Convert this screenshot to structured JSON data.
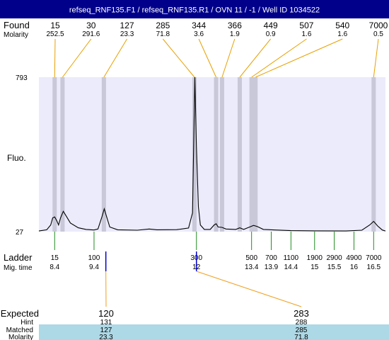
{
  "title": "refseq_RNF135.F1 / refseq_RNF135.R1 / OVN 11 / -1 / Well ID 1034522",
  "colors": {
    "title_bar": "#00008b",
    "plot_bg": "#ebebfb",
    "band": "#c8c8d8",
    "found_line": "#e8a000",
    "ladder_tick": "#228b22",
    "expected_line": "#f0a020",
    "expected_marker": "#0000cc",
    "matched_row_bg": "#add8e6"
  },
  "labels": {
    "found": "Found",
    "molarity": "Molarity",
    "fluo": "Fluo.",
    "ladder": "Ladder",
    "mig_time": "Mig. time",
    "expected": "Expected",
    "hint": "Hint",
    "matched": "Matched",
    "molarity_bottom": "Molarity"
  },
  "chart_data": {
    "type": "line",
    "y_axis": {
      "min": 27,
      "max": 793,
      "ticks": [
        793,
        27
      ]
    },
    "x_axis": {
      "unit": "migration time",
      "range": [
        8.0,
        16.8
      ]
    },
    "found_peaks": [
      {
        "size": "15",
        "molarity": "252.5",
        "time": 8.4
      },
      {
        "size": "30",
        "molarity": "291.6",
        "time": 8.6
      },
      {
        "size": "127",
        "molarity": "23.3",
        "time": 9.65
      },
      {
        "size": "285",
        "molarity": "71.8",
        "time": 11.95
      },
      {
        "size": "344",
        "molarity": "3.6",
        "time": 12.5
      },
      {
        "size": "366",
        "molarity": "1.9",
        "time": 12.65
      },
      {
        "size": "449",
        "molarity": "0.9",
        "time": 13.1
      },
      {
        "size": "507",
        "molarity": "1.6",
        "time": 13.4
      },
      {
        "size": "540",
        "molarity": "1.6",
        "time": 13.5
      },
      {
        "size": "7000",
        "molarity": "0.5",
        "time": 16.5
      }
    ],
    "ladder": [
      {
        "size": "15",
        "time": "8.4",
        "t": 8.4
      },
      {
        "size": "100",
        "time": "9.4",
        "t": 9.4
      },
      {
        "size": "300",
        "time": "12",
        "t": 12.0
      },
      {
        "size": "500",
        "time": "13.4",
        "t": 13.4
      },
      {
        "size": "700",
        "time": "13.9",
        "t": 13.9
      },
      {
        "size": "1100",
        "time": "14.4",
        "t": 14.4
      },
      {
        "size": "1900",
        "time": "15",
        "t": 15.0
      },
      {
        "size": "2900",
        "time": "15.5",
        "t": 15.5
      },
      {
        "size": "4900",
        "time": "16",
        "t": 16.0
      },
      {
        "size": "7000",
        "time": "16.5",
        "t": 16.5
      }
    ],
    "expected": [
      {
        "expected": "120",
        "hint": "131",
        "matched": "127",
        "molarity": "23.3",
        "time": 9.7
      },
      {
        "expected": "283",
        "hint": "288",
        "matched": "285",
        "molarity": "71.8",
        "time": 12.0
      }
    ],
    "trace": [
      [
        8.0,
        30
      ],
      [
        8.2,
        36
      ],
      [
        8.3,
        60
      ],
      [
        8.35,
        95
      ],
      [
        8.4,
        100
      ],
      [
        8.45,
        82
      ],
      [
        8.5,
        60
      ],
      [
        8.55,
        95
      ],
      [
        8.62,
        128
      ],
      [
        8.7,
        102
      ],
      [
        8.8,
        70
      ],
      [
        9.0,
        46
      ],
      [
        9.2,
        38
      ],
      [
        9.4,
        35
      ],
      [
        9.5,
        40
      ],
      [
        9.6,
        100
      ],
      [
        9.66,
        140
      ],
      [
        9.72,
        100
      ],
      [
        9.8,
        50
      ],
      [
        10.0,
        36
      ],
      [
        10.5,
        34
      ],
      [
        10.8,
        40
      ],
      [
        11.0,
        36
      ],
      [
        11.5,
        37
      ],
      [
        11.8,
        45
      ],
      [
        11.9,
        120
      ],
      [
        11.93,
        450
      ],
      [
        11.96,
        793
      ],
      [
        12.0,
        450
      ],
      [
        12.05,
        150
      ],
      [
        12.1,
        60
      ],
      [
        12.2,
        38
      ],
      [
        12.35,
        38
      ],
      [
        12.45,
        60
      ],
      [
        12.5,
        66
      ],
      [
        12.55,
        50
      ],
      [
        12.65,
        48
      ],
      [
        12.75,
        40
      ],
      [
        13.0,
        38
      ],
      [
        13.1,
        46
      ],
      [
        13.2,
        38
      ],
      [
        13.35,
        50
      ],
      [
        13.45,
        58
      ],
      [
        13.55,
        52
      ],
      [
        13.7,
        38
      ],
      [
        14.0,
        35
      ],
      [
        14.4,
        32
      ],
      [
        15.0,
        31
      ],
      [
        15.8,
        30
      ],
      [
        16.2,
        34
      ],
      [
        16.4,
        60
      ],
      [
        16.5,
        78
      ],
      [
        16.6,
        55
      ],
      [
        16.72,
        35
      ],
      [
        16.8,
        30
      ]
    ]
  }
}
